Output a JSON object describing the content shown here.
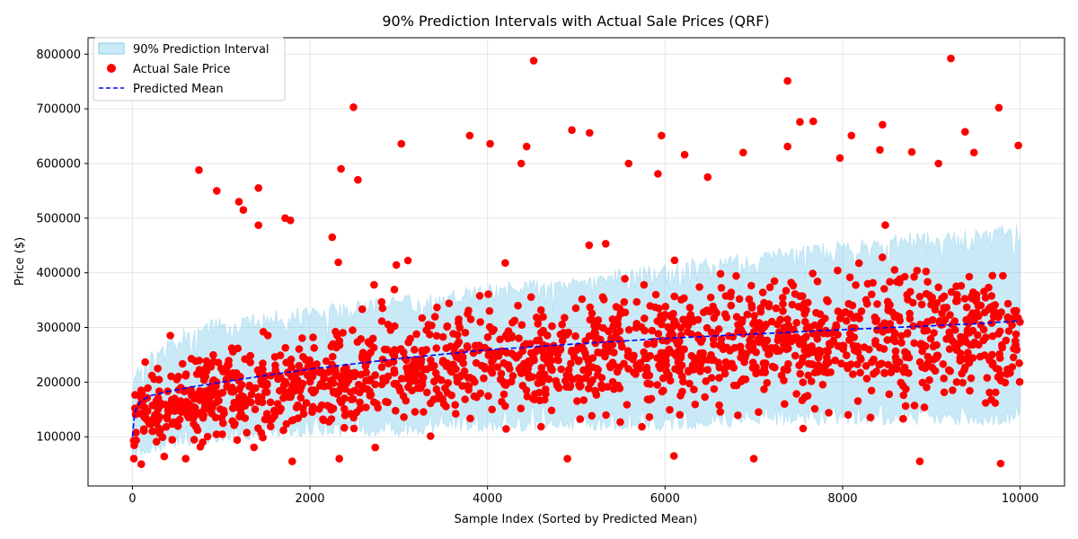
{
  "chart_data": {
    "type": "scatter",
    "title": "90% Prediction Intervals with Actual Sale Prices (QRF)",
    "xlabel": "Sample Index (Sorted by Predicted Mean)",
    "ylabel": "Price ($)",
    "xlim": [
      -500,
      10500
    ],
    "ylim": [
      10000,
      830000
    ],
    "x_ticks": [
      0,
      2000,
      4000,
      6000,
      8000,
      10000
    ],
    "y_ticks": [
      100000,
      200000,
      300000,
      400000,
      500000,
      600000,
      700000,
      800000
    ],
    "grid": true,
    "legend_position": "top-left",
    "colors": {
      "interval": "#87ceeb",
      "actual": "#ff0000",
      "mean": "#0000ff"
    },
    "series": [
      {
        "name": "90% Prediction Interval",
        "kind": "band",
        "x": [
          0,
          100,
          500,
          1000,
          2000,
          3000,
          4000,
          5000,
          6000,
          7000,
          8000,
          9000,
          10000
        ],
        "lower": [
          60000,
          60000,
          80000,
          90000,
          100000,
          100000,
          110000,
          110000,
          110000,
          120000,
          120000,
          120000,
          120000
        ],
        "upper": [
          230000,
          240000,
          300000,
          320000,
          340000,
          360000,
          380000,
          400000,
          420000,
          440000,
          460000,
          480000,
          490000
        ]
      },
      {
        "name": "Actual Sale Price",
        "kind": "scatter",
        "points": [
          [
            100,
            50000
          ],
          [
            750,
            588000
          ],
          [
            950,
            550000
          ],
          [
            1200,
            530000
          ],
          [
            1250,
            515000
          ],
          [
            1420,
            555000
          ],
          [
            1420,
            487000
          ],
          [
            1720,
            500000
          ],
          [
            1780,
            496000
          ],
          [
            2250,
            465000
          ],
          [
            2350,
            590000
          ],
          [
            2490,
            703000
          ],
          [
            2540,
            570000
          ],
          [
            3030,
            636000
          ],
          [
            3800,
            651000
          ],
          [
            4030,
            636000
          ],
          [
            4380,
            600000
          ],
          [
            4440,
            631000
          ],
          [
            4520,
            788000
          ],
          [
            4950,
            661000
          ],
          [
            5150,
            656000
          ],
          [
            5590,
            600000
          ],
          [
            5920,
            581000
          ],
          [
            5960,
            651000
          ],
          [
            6220,
            616000
          ],
          [
            6480,
            575000
          ],
          [
            6880,
            620000
          ],
          [
            7380,
            751000
          ],
          [
            7380,
            631000
          ],
          [
            7520,
            676000
          ],
          [
            7670,
            677000
          ],
          [
            7970,
            610000
          ],
          [
            8100,
            651000
          ],
          [
            8420,
            625000
          ],
          [
            8450,
            671000
          ],
          [
            8780,
            621000
          ],
          [
            9080,
            600000
          ],
          [
            9220,
            792000
          ],
          [
            9380,
            658000
          ],
          [
            9480,
            620000
          ],
          [
            9760,
            702000
          ],
          [
            9780,
            51000
          ],
          [
            9980,
            633000
          ],
          [
            8870,
            55000
          ],
          [
            7000,
            60000
          ],
          [
            600,
            60000
          ],
          [
            4900,
            60000
          ],
          [
            6100,
            65000
          ],
          [
            2330,
            60000
          ],
          [
            1800,
            55000
          ]
        ]
      },
      {
        "name": "Predicted Mean",
        "kind": "line",
        "x": [
          0,
          20,
          50,
          100,
          200,
          400,
          700,
          1000,
          1500,
          2000,
          3000,
          4000,
          5000,
          6000,
          7000,
          8000,
          9000,
          9500,
          10000
        ],
        "y": [
          100000,
          140000,
          155000,
          166000,
          175000,
          183000,
          192000,
          200000,
          212000,
          224000,
          243000,
          259000,
          270000,
          280000,
          288000,
          296000,
          303000,
          307000,
          312000
        ]
      }
    ]
  }
}
